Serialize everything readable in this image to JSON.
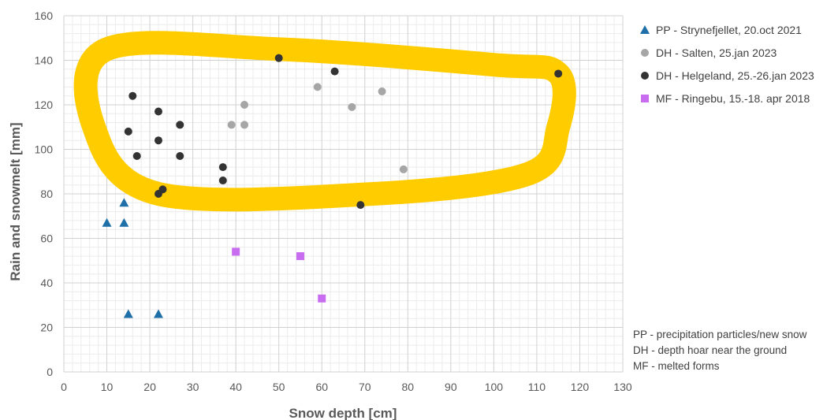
{
  "chart_data": {
    "type": "scatter",
    "xlabel": "Snow depth [cm]",
    "ylabel": "Rain and snowmelt [mm]",
    "xlim": [
      0,
      130
    ],
    "ylim": [
      0,
      160
    ],
    "x_ticks": [
      "0",
      "10",
      "20",
      "30",
      "40",
      "50",
      "60",
      "70",
      "80",
      "90",
      "100",
      "110",
      "120",
      "130"
    ],
    "y_ticks": [
      "0",
      "20",
      "40",
      "60",
      "80",
      "100",
      "120",
      "140",
      "160"
    ],
    "grid": true,
    "legend_position": "right",
    "series": [
      {
        "name": "PP - Strynefjellet, 20.oct 2021",
        "marker": "triangle",
        "color": "#1f6fa8",
        "points": [
          [
            10,
            67
          ],
          [
            14,
            67
          ],
          [
            14,
            76
          ],
          [
            15,
            26
          ],
          [
            22,
            26
          ]
        ]
      },
      {
        "name": "DH - Salten, 25.jan 2023",
        "marker": "circle",
        "color": "#a6a6a6",
        "points": [
          [
            39,
            111
          ],
          [
            42,
            111
          ],
          [
            42,
            120
          ],
          [
            59,
            128
          ],
          [
            67,
            119
          ],
          [
            74,
            126
          ],
          [
            79,
            91
          ]
        ]
      },
      {
        "name": "DH - Helgeland, 25.-26.jan 2023",
        "marker": "circle",
        "color": "#333333",
        "points": [
          [
            16,
            124
          ],
          [
            15,
            108
          ],
          [
            17,
            97
          ],
          [
            22,
            117
          ],
          [
            22,
            104
          ],
          [
            27,
            111
          ],
          [
            27,
            97
          ],
          [
            22,
            80
          ],
          [
            23,
            82
          ],
          [
            37,
            92
          ],
          [
            37,
            86
          ],
          [
            50,
            141
          ],
          [
            63,
            135
          ],
          [
            115,
            134
          ],
          [
            69,
            75
          ]
        ]
      },
      {
        "name": "MF - Ringebu, 15.-18. apr 2018",
        "marker": "square",
        "color": "#c86cf0",
        "points": [
          [
            40,
            54
          ],
          [
            55,
            52
          ],
          [
            60,
            33
          ]
        ]
      }
    ],
    "highlight": {
      "shape": "closed-loop",
      "color": "#ffcc00",
      "points": [
        [
          10,
          145
        ],
        [
          50,
          145
        ],
        [
          100,
          138
        ],
        [
          115,
          134
        ],
        [
          115,
          110
        ],
        [
          108,
          89
        ],
        [
          72,
          80
        ],
        [
          22,
          80
        ],
        [
          7,
          110
        ]
      ]
    },
    "notes": [
      "PP - precipitation particles/new snow",
      "DH - depth hoar near the ground",
      "MF - melted forms"
    ]
  }
}
